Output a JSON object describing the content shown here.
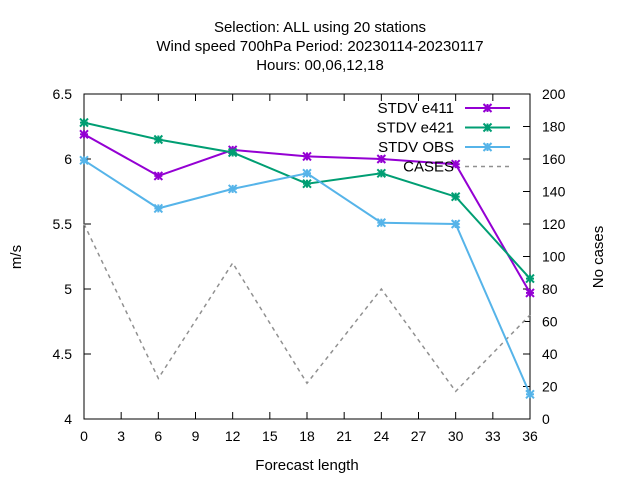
{
  "chart_data": {
    "type": "line",
    "title_lines": [
      "Selection: ALL using    20 stations",
      "Wind speed 700hPa   Period: 20230114-20230117",
      "Hours:  00,06,12,18"
    ],
    "xlabel": "Forecast length",
    "ylabel": "m/s",
    "y2label": "No cases",
    "xlim": [
      0,
      36
    ],
    "ylim": [
      4,
      6.5
    ],
    "y2lim": [
      0,
      200
    ],
    "x_ticks": [
      "0",
      "3",
      "6",
      "9",
      "12",
      "15",
      "18",
      "21",
      "24",
      "27",
      "30",
      "33",
      "36"
    ],
    "y_ticks": [
      "4",
      "4.5",
      "5",
      "5.5",
      "6",
      "6.5"
    ],
    "y2_ticks": [
      "0",
      "20",
      "40",
      "60",
      "80",
      "100",
      "120",
      "140",
      "160",
      "180",
      "200"
    ],
    "grid": false,
    "legend_position": "top-right",
    "x": [
      0,
      6,
      12,
      18,
      24,
      30,
      36
    ],
    "series": [
      {
        "name": "STDV e411",
        "axis": "y",
        "color": "#9400d3",
        "style": "solid",
        "marker": "x",
        "values": [
          6.19,
          5.87,
          6.07,
          6.02,
          6.0,
          5.96,
          4.97
        ]
      },
      {
        "name": "STDV e421",
        "axis": "y",
        "color": "#009e73",
        "style": "solid",
        "marker": "x",
        "values": [
          6.28,
          6.15,
          6.05,
          5.81,
          5.89,
          5.71,
          5.08
        ]
      },
      {
        "name": "STDV OBS",
        "axis": "y",
        "color": "#56b4e9",
        "style": "solid",
        "marker": "x",
        "values": [
          5.99,
          5.62,
          5.77,
          5.89,
          5.51,
          5.5,
          4.19
        ]
      },
      {
        "name": "CASES",
        "axis": "y2",
        "color": "#909090",
        "style": "dashed",
        "marker": "none",
        "values": [
          120,
          25,
          96,
          22,
          80,
          17,
          64
        ]
      }
    ]
  }
}
